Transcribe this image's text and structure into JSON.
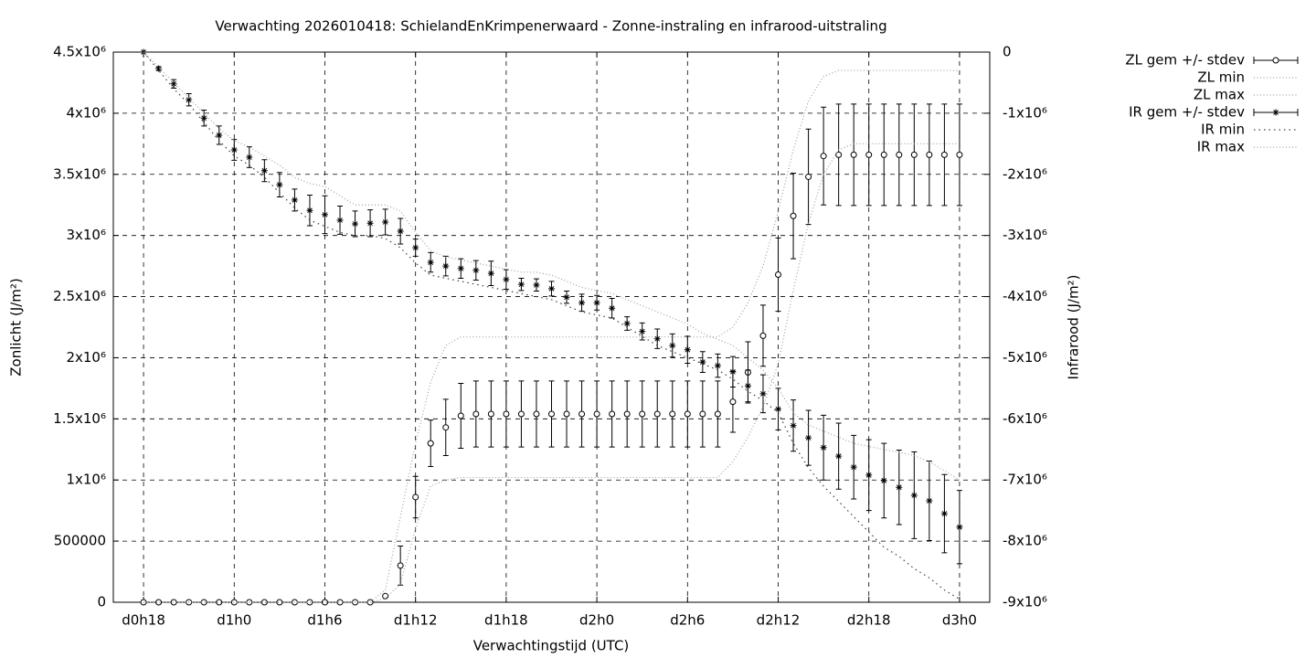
{
  "chart_data": {
    "type": "errorbar-line",
    "title": "Verwachting 2026010418: SchielandEnKrimpenerwaard - Zonne-instraling en infrarood-uitstraling",
    "x_label": "Verwachtingstijd (UTC)",
    "y_label": "Zonlicht (J/m²)",
    "y2_label": "Infrarood (J/m²)",
    "categories": [
      "d0h18",
      null,
      null,
      null,
      null,
      null,
      "d1h0",
      null,
      null,
      null,
      null,
      null,
      "d1h6",
      null,
      null,
      null,
      null,
      null,
      "d1h12",
      null,
      null,
      null,
      null,
      null,
      "d1h18",
      null,
      null,
      null,
      null,
      null,
      "d2h0",
      null,
      null,
      null,
      null,
      null,
      "d2h6",
      null,
      null,
      null,
      null,
      null,
      "d2h12",
      null,
      null,
      null,
      null,
      null,
      "d2h18",
      null,
      null,
      null,
      null,
      null,
      "d3h0"
    ],
    "ylim": [
      0,
      4500000
    ],
    "yticks": [
      0,
      500000,
      {
        "value": 1000000,
        "label": "1x10⁶"
      },
      {
        "value": 1500000,
        "label": "1.5x10⁶"
      },
      {
        "value": 2000000,
        "label": "2x10⁶"
      },
      {
        "value": 2500000,
        "label": "2.5x10⁶"
      },
      {
        "value": 3000000,
        "label": "3x10⁶"
      },
      {
        "value": 3500000,
        "label": "3.5x10⁶"
      },
      {
        "value": 4000000,
        "label": "4x10⁶"
      },
      {
        "value": 4500000,
        "label": "4.5x10⁶"
      }
    ],
    "y2lim": [
      -9000000,
      0
    ],
    "y2ticks": [
      {
        "value": -9000000,
        "label": "-9x10⁶"
      },
      {
        "value": -8000000,
        "label": "-8x10⁶"
      },
      {
        "value": -7000000,
        "label": "-7x10⁶"
      },
      {
        "value": -6000000,
        "label": "-6x10⁶"
      },
      {
        "value": -5000000,
        "label": "-5x10⁶"
      },
      {
        "value": -4000000,
        "label": "-4x10⁶"
      },
      {
        "value": -3000000,
        "label": "-3x10⁶"
      },
      {
        "value": -2000000,
        "label": "-2x10⁶"
      },
      {
        "value": -1000000,
        "label": "-1x10⁶"
      },
      0
    ],
    "grid": true,
    "legend": "outside-top-right",
    "series": [
      {
        "name": "ZL gem +/- stdev",
        "color": "#000000",
        "style": "errorbars",
        "marker": "circle",
        "values": [
          0,
          0,
          0,
          0,
          0,
          0,
          0,
          0,
          0,
          0,
          0,
          0,
          0,
          0,
          0,
          0,
          50000,
          300000,
          860000,
          1300000,
          1430000,
          1525000,
          1540000,
          1540000,
          1540000,
          1540000,
          1540000,
          1540000,
          1540000,
          1540000,
          1540000,
          1540000,
          1540000,
          1540000,
          1540000,
          1540000,
          1540000,
          1540000,
          1540000,
          1640000,
          1880000,
          2180000,
          2680000,
          3160000,
          3480000,
          3650000,
          3660000,
          3660000,
          3660000,
          3660000,
          3660000,
          3660000,
          3660000,
          3660000,
          3660000
        ],
        "errors": [
          0,
          0,
          0,
          0,
          0,
          0,
          0,
          0,
          0,
          0,
          0,
          0,
          0,
          0,
          0,
          0,
          10000,
          160000,
          170000,
          190000,
          230000,
          265000,
          270000,
          270000,
          270000,
          270000,
          270000,
          270000,
          270000,
          270000,
          270000,
          270000,
          270000,
          270000,
          270000,
          270000,
          270000,
          270000,
          270000,
          250000,
          250000,
          250000,
          300000,
          350000,
          390000,
          400000,
          415000,
          415000,
          415000,
          415000,
          415000,
          415000,
          415000,
          415000,
          415000
        ]
      },
      {
        "name": "ZL min",
        "color": "#a0a0a0",
        "style": "dots",
        "values": [
          0,
          0,
          0,
          0,
          0,
          0,
          0,
          0,
          0,
          0,
          0,
          0,
          0,
          0,
          0,
          0,
          30000,
          150000,
          600000,
          950000,
          1000000,
          1020000,
          1020000,
          1020000,
          1020000,
          1020000,
          1020000,
          1020000,
          1020000,
          1020000,
          1020000,
          1020000,
          1020000,
          1020000,
          1020000,
          1020000,
          1020000,
          1020000,
          1020000,
          1150000,
          1350000,
          1600000,
          1950000,
          2550000,
          3100000,
          3500000,
          3700000,
          3750000,
          3750000,
          3750000,
          3750000,
          3750000,
          3750000,
          3750000,
          3750000
        ]
      },
      {
        "name": "ZL max",
        "color": "#a0a0a0",
        "style": "dots",
        "values": [
          0,
          0,
          0,
          0,
          0,
          0,
          0,
          0,
          0,
          0,
          0,
          0,
          0,
          0,
          0,
          0,
          100000,
          700000,
          1300000,
          1800000,
          2100000,
          2170000,
          2170000,
          2170000,
          2170000,
          2170000,
          2170000,
          2170000,
          2170000,
          2170000,
          2170000,
          2170000,
          2170000,
          2170000,
          2170000,
          2170000,
          2170000,
          2170000,
          2170000,
          2250000,
          2450000,
          2750000,
          3200000,
          3700000,
          4100000,
          4300000,
          4350000,
          4350000,
          4350000,
          4350000,
          4350000,
          4350000,
          4350000,
          4350000,
          4350000
        ]
      },
      {
        "name": "IR gem +/- stdev",
        "color": "#000000",
        "style": "errorbars",
        "marker": "asterisk",
        "axis": "y2",
        "values": [
          0,
          -270000,
          -520000,
          -780000,
          -1080000,
          -1360000,
          -1600000,
          -1720000,
          -1940000,
          -2170000,
          -2420000,
          -2590000,
          -2660000,
          -2750000,
          -2810000,
          -2800000,
          -2780000,
          -2930000,
          -3200000,
          -3440000,
          -3500000,
          -3540000,
          -3570000,
          -3620000,
          -3720000,
          -3800000,
          -3810000,
          -3870000,
          -4010000,
          -4100000,
          -4100000,
          -4190000,
          -4440000,
          -4570000,
          -4690000,
          -4800000,
          -4870000,
          -5070000,
          -5130000,
          -5230000,
          -5460000,
          -5590000,
          -5840000,
          -6110000,
          -6310000,
          -6470000,
          -6610000,
          -6790000,
          -6920000,
          -7010000,
          -7120000,
          -7250000,
          -7340000,
          -7550000,
          -7770000
        ],
        "errors": [
          0,
          30000,
          70000,
          100000,
          130000,
          150000,
          170000,
          170000,
          180000,
          200000,
          180000,
          250000,
          310000,
          230000,
          210000,
          220000,
          210000,
          210000,
          140000,
          160000,
          160000,
          160000,
          160000,
          200000,
          160000,
          100000,
          100000,
          120000,
          100000,
          140000,
          120000,
          160000,
          110000,
          140000,
          160000,
          190000,
          220000,
          170000,
          190000,
          250000,
          260000,
          310000,
          340000,
          420000,
          450000,
          530000,
          540000,
          520000,
          580000,
          610000,
          610000,
          710000,
          650000,
          640000,
          600000
        ]
      },
      {
        "name": "IR min",
        "color": "#404040",
        "style": "dots",
        "axis": "y2",
        "values": [
          0,
          -300000,
          -600000,
          -850000,
          -1150000,
          -1450000,
          -1700000,
          -1850000,
          -2050000,
          -2300000,
          -2550000,
          -2750000,
          -2850000,
          -2950000,
          -3000000,
          -3000000,
          -3050000,
          -3200000,
          -3450000,
          -3650000,
          -3700000,
          -3750000,
          -3800000,
          -3850000,
          -3900000,
          -3950000,
          -4000000,
          -4050000,
          -4150000,
          -4250000,
          -4300000,
          -4350000,
          -4500000,
          -4650000,
          -4800000,
          -4900000,
          -5000000,
          -5100000,
          -5200000,
          -5350000,
          -5550000,
          -5700000,
          -5900000,
          -6400000,
          -6800000,
          -7100000,
          -7350000,
          -7600000,
          -7850000,
          -8100000,
          -8250000,
          -8450000,
          -8600000,
          -8800000,
          -8950000
        ]
      },
      {
        "name": "IR max",
        "color": "#a0a0a0",
        "style": "dots",
        "axis": "y2",
        "values": [
          0,
          -250000,
          -500000,
          -750000,
          -1000000,
          -1250000,
          -1450000,
          -1550000,
          -1700000,
          -1850000,
          -2050000,
          -2150000,
          -2200000,
          -2350000,
          -2500000,
          -2500000,
          -2500000,
          -2600000,
          -2950000,
          -3250000,
          -3350000,
          -3400000,
          -3450000,
          -3500000,
          -3550000,
          -3600000,
          -3600000,
          -3650000,
          -3750000,
          -3850000,
          -3900000,
          -3950000,
          -4050000,
          -4150000,
          -4250000,
          -4350000,
          -4450000,
          -4600000,
          -4700000,
          -4800000,
          -5000000,
          -5200000,
          -5500000,
          -5900000,
          -6100000,
          -6200000,
          -6300000,
          -6400000,
          -6450000,
          -6500000,
          -6550000,
          -6600000,
          -6700000,
          -6850000,
          -7000000
        ]
      }
    ]
  }
}
